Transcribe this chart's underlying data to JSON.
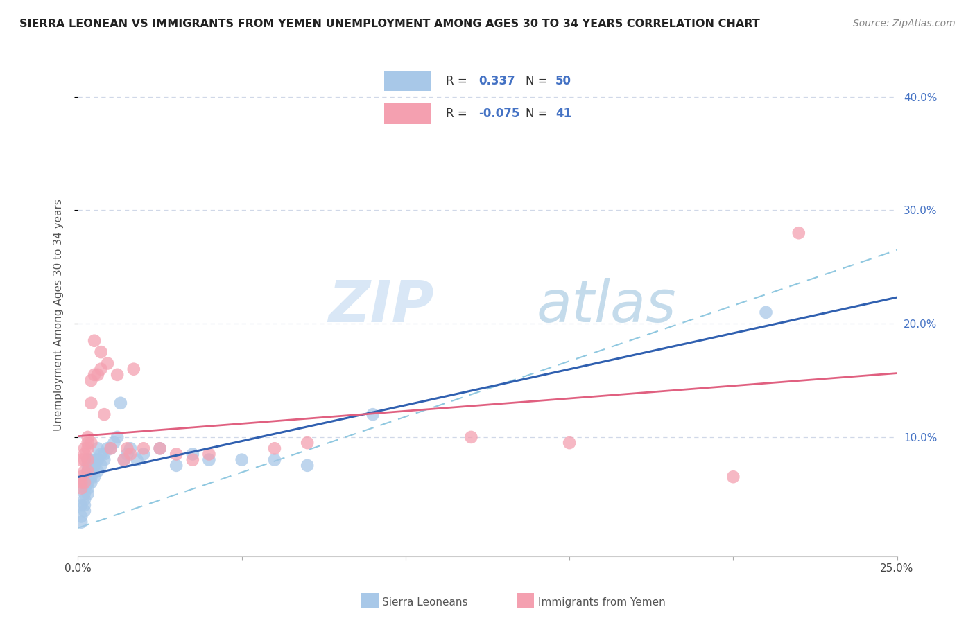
{
  "title": "SIERRA LEONEAN VS IMMIGRANTS FROM YEMEN UNEMPLOYMENT AMONG AGES 30 TO 34 YEARS CORRELATION CHART",
  "source": "Source: ZipAtlas.com",
  "ylabel": "Unemployment Among Ages 30 to 34 years",
  "xlim": [
    0.0,
    0.25
  ],
  "ylim": [
    -0.005,
    0.42
  ],
  "watermark_zip": "ZIP",
  "watermark_atlas": "atlas",
  "blue_color": "#a8c8e8",
  "pink_color": "#f4a0b0",
  "blue_line_color": "#3060b0",
  "pink_line_color": "#e06080",
  "dashed_line_color": "#90c8e0",
  "grid_color": "#d0d8e8",
  "background_color": "#ffffff",
  "tick_color_right": "#4472c4",
  "R_blue": 0.337,
  "N_blue": 50,
  "R_pink": -0.075,
  "N_pink": 41,
  "sl_x": [
    0.001,
    0.001,
    0.001,
    0.002,
    0.002,
    0.002,
    0.002,
    0.002,
    0.002,
    0.003,
    0.003,
    0.003,
    0.003,
    0.003,
    0.003,
    0.003,
    0.004,
    0.004,
    0.004,
    0.004,
    0.004,
    0.005,
    0.005,
    0.005,
    0.006,
    0.006,
    0.006,
    0.007,
    0.007,
    0.008,
    0.008,
    0.009,
    0.01,
    0.011,
    0.012,
    0.013,
    0.014,
    0.015,
    0.016,
    0.018,
    0.02,
    0.025,
    0.03,
    0.035,
    0.04,
    0.05,
    0.06,
    0.07,
    0.09,
    0.21
  ],
  "sl_y": [
    0.04,
    0.03,
    0.025,
    0.035,
    0.04,
    0.045,
    0.05,
    0.055,
    0.06,
    0.05,
    0.055,
    0.06,
    0.065,
    0.07,
    0.075,
    0.08,
    0.06,
    0.065,
    0.07,
    0.075,
    0.08,
    0.065,
    0.075,
    0.08,
    0.07,
    0.08,
    0.09,
    0.075,
    0.085,
    0.08,
    0.085,
    0.09,
    0.09,
    0.095,
    0.1,
    0.13,
    0.08,
    0.085,
    0.09,
    0.08,
    0.085,
    0.09,
    0.075,
    0.085,
    0.08,
    0.08,
    0.08,
    0.075,
    0.12,
    0.21
  ],
  "ye_x": [
    0.001,
    0.001,
    0.001,
    0.001,
    0.002,
    0.002,
    0.002,
    0.002,
    0.002,
    0.003,
    0.003,
    0.003,
    0.003,
    0.003,
    0.004,
    0.004,
    0.004,
    0.005,
    0.005,
    0.006,
    0.007,
    0.007,
    0.008,
    0.009,
    0.01,
    0.012,
    0.014,
    0.015,
    0.016,
    0.017,
    0.02,
    0.025,
    0.03,
    0.035,
    0.04,
    0.06,
    0.07,
    0.12,
    0.15,
    0.2,
    0.22
  ],
  "ye_y": [
    0.055,
    0.06,
    0.065,
    0.08,
    0.06,
    0.07,
    0.08,
    0.085,
    0.09,
    0.07,
    0.08,
    0.09,
    0.095,
    0.1,
    0.095,
    0.13,
    0.15,
    0.155,
    0.185,
    0.155,
    0.16,
    0.175,
    0.12,
    0.165,
    0.09,
    0.155,
    0.08,
    0.09,
    0.085,
    0.16,
    0.09,
    0.09,
    0.085,
    0.08,
    0.085,
    0.09,
    0.095,
    0.1,
    0.095,
    0.065,
    0.28
  ]
}
